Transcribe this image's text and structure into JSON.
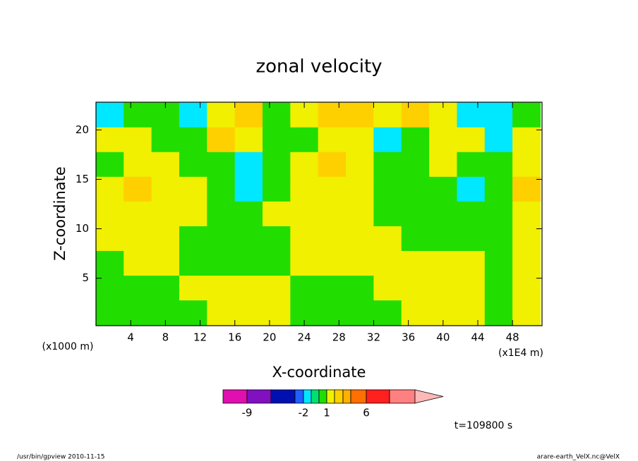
{
  "chart_data": {
    "type": "contour",
    "title": "zonal velocity",
    "xlabel": "X-coordinate",
    "ylabel": "Z-coordinate",
    "xlabel_unit": "(x1E4 m)",
    "ylabel_unit": "(x1000 m)",
    "time_label": "t=109800 s",
    "footer_left": "/usr/bin/gpview  2010-11-15",
    "footer_right": "arare-earth_VelX.nc@VelX",
    "xlim": [
      0,
      51.4
    ],
    "ylim": [
      0.2,
      22.8
    ],
    "xticks": [
      4,
      8,
      12,
      16,
      20,
      24,
      28,
      32,
      36,
      40,
      44,
      48
    ],
    "yticks": [
      5,
      10,
      15,
      20
    ],
    "x": [
      1.6,
      4.8,
      8.0,
      11.2,
      14.4,
      17.6,
      20.8,
      24.0,
      27.2,
      30.4,
      33.6,
      36.8,
      40.0,
      43.2,
      46.4,
      49.6
    ],
    "y": [
      21.5,
      19,
      16.5,
      14,
      11.5,
      9,
      6.5,
      4,
      1.5
    ],
    "z": [
      [
        -1.5,
        0.5,
        0.5,
        -1.5,
        1.5,
        2.5,
        0.5,
        1.5,
        2.5,
        2.5,
        1.5,
        2.5,
        1.5,
        -1.5,
        -1.5,
        0.5
      ],
      [
        1.5,
        1.5,
        0.5,
        0.5,
        2.5,
        1.5,
        0.5,
        0.5,
        1.5,
        1.5,
        -1.5,
        0.5,
        1.5,
        1.5,
        -1.5,
        1.5
      ],
      [
        0.5,
        1.5,
        1.5,
        0.5,
        0.5,
        -1.5,
        0.5,
        1.5,
        2.5,
        1.5,
        0.5,
        0.5,
        1.5,
        0.5,
        0.5,
        1.5
      ],
      [
        1.5,
        2.5,
        1.5,
        1.5,
        0.5,
        -1.5,
        0.5,
        1.5,
        1.5,
        1.5,
        0.5,
        0.5,
        0.5,
        -1.5,
        0.5,
        2.5
      ],
      [
        1.5,
        1.5,
        1.5,
        1.5,
        0.5,
        0.5,
        1.5,
        1.5,
        1.5,
        1.5,
        0.5,
        0.5,
        0.5,
        0.5,
        0.5,
        1.5
      ],
      [
        1.5,
        1.5,
        1.5,
        0.5,
        0.5,
        0.5,
        0.5,
        1.5,
        1.5,
        1.5,
        1.5,
        0.5,
        0.5,
        0.5,
        0.5,
        1.5
      ],
      [
        0.5,
        1.5,
        1.5,
        0.5,
        0.5,
        0.5,
        0.5,
        1.5,
        1.5,
        1.5,
        1.5,
        1.5,
        1.5,
        1.5,
        0.5,
        1.5
      ],
      [
        0.5,
        0.5,
        0.5,
        1.5,
        1.5,
        1.5,
        1.5,
        0.5,
        0.5,
        0.5,
        1.5,
        1.5,
        1.5,
        1.5,
        0.5,
        1.5
      ],
      [
        0.5,
        0.5,
        0.5,
        0.5,
        1.5,
        1.5,
        1.5,
        0.5,
        0.5,
        0.5,
        0.5,
        1.5,
        1.5,
        1.5,
        0.5,
        1.5
      ]
    ],
    "levels": [
      -9,
      -6,
      -3,
      -2,
      -1,
      0,
      1,
      2,
      3,
      4,
      6,
      9
    ],
    "colors": [
      "#e010b0",
      "#8010c0",
      "#0010b0",
      "#2060ff",
      "#00e8ff",
      "#00e070",
      "#22dd00",
      "#f0f000",
      "#ffd000",
      "#ffb000",
      "#ff7000",
      "#ff2020",
      "#ff8080",
      "#ffb8b8"
    ],
    "colorbar_ticks": [
      -9,
      -2,
      1,
      6
    ]
  }
}
